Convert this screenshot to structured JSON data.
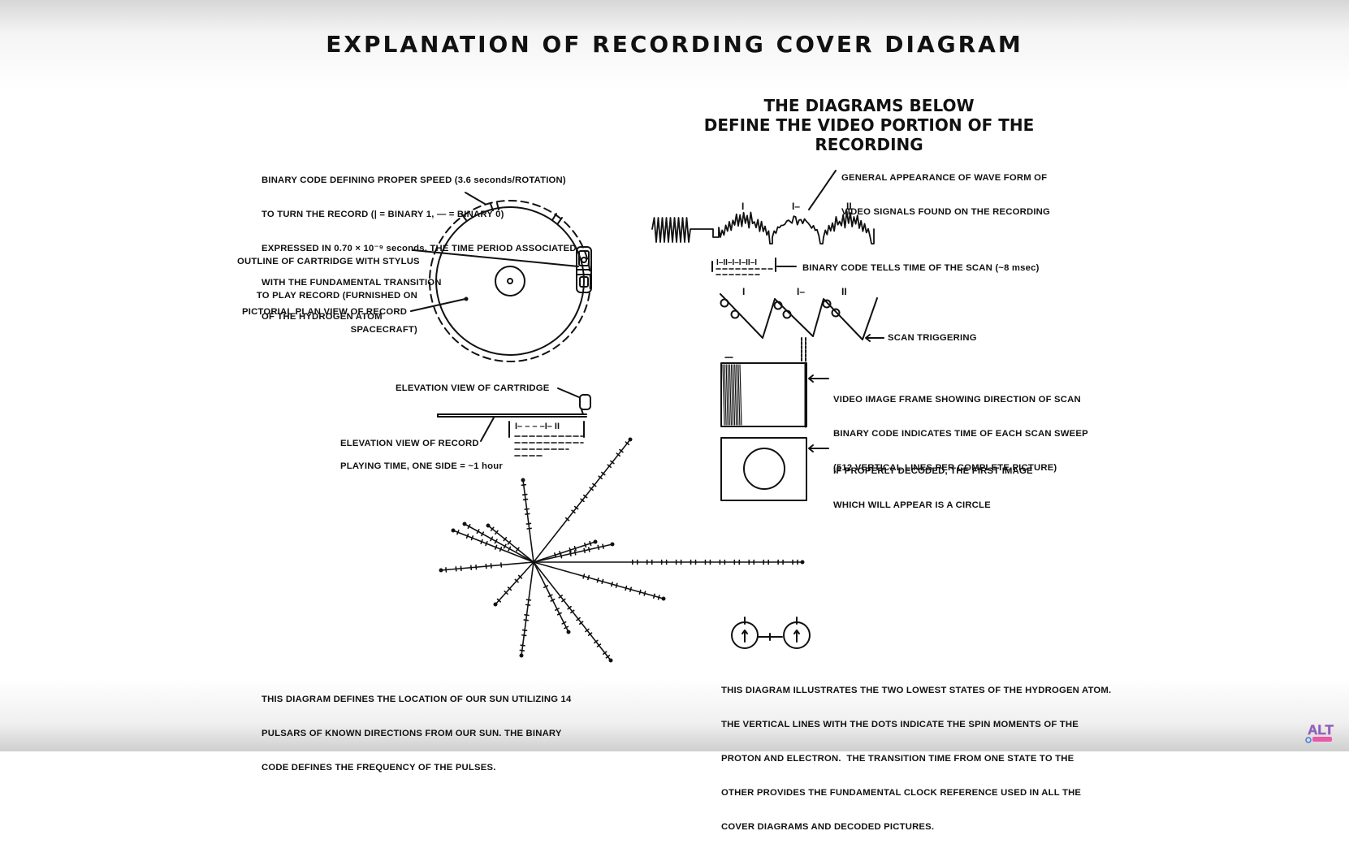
{
  "title": "EXPLANATION OF RECORDING COVER DIAGRAM",
  "subtitle": [
    "THE DIAGRAMS BELOW",
    "DEFINE THE VIDEO PORTION OF THE RECORDING"
  ],
  "left_labels": {
    "binary_code": [
      "BINARY CODE DEFINING PROPER SPEED (3.6 seconds/ROTATION)",
      "TO TURN THE RECORD (| = BINARY 1, — = BINARY 0)",
      "EXPRESSED IN 0.70 × 10⁻⁹ seconds, THE TIME PERIOD ASSOCIATED",
      "WITH THE FUNDAMENTAL TRANSITION",
      "OF THE HYDROGEN ATOM"
    ],
    "cartridge_outline": [
      "OUTLINE OF CARTRIDGE WITH STYLUS",
      "TO PLAY RECORD (FURNISHED ON",
      "SPACECRAFT)"
    ],
    "plan_view": "PICTORIAL PLAN VIEW OF RECORD",
    "elevation_cartridge": "ELEVATION VIEW OF CARTRIDGE",
    "elevation_record": "ELEVATION VIEW OF RECORD",
    "playing_time": "PLAYING TIME, ONE SIDE = ~1 hour",
    "pulsar_caption": [
      "THIS DIAGRAM DEFINES THE LOCATION OF OUR SUN UTILIZING 14",
      "PULSARS OF KNOWN DIRECTIONS FROM OUR SUN. THE BINARY",
      "CODE DEFINES THE FREQUENCY OF THE PULSES."
    ]
  },
  "right_labels": {
    "waveform": [
      "GENERAL APPEARANCE OF WAVE FORM OF",
      "VIDEO SIGNALS FOUND ON THE RECORDING"
    ],
    "binary_time": "BINARY CODE TELLS TIME OF THE SCAN (~8 msec)",
    "scan_trigger": "SCAN TRIGGERING",
    "video_frame": [
      "VIDEO IMAGE FRAME SHOWING DIRECTION OF SCAN",
      "BINARY CODE INDICATES TIME OF EACH SCAN SWEEP",
      "(512 VERTICAL LINES PER COMPLETE PICTURE)"
    ],
    "first_image": [
      "IF PROPERLY DECODED, THE FIRST IMAGE",
      "WHICH WILL APPEAR IS A CIRCLE"
    ],
    "hydrogen_caption": [
      "THIS DIAGRAM ILLUSTRATES THE TWO LOWEST STATES OF THE HYDROGEN ATOM.",
      "THE VERTICAL LINES WITH THE DOTS INDICATE THE SPIN MOMENTS OF THE",
      "PROTON AND ELECTRON.  THE TRANSITION TIME FROM ONE STATE TO THE",
      "OTHER PROVIDES THE FUNDAMENTAL CLOCK REFERENCE USED IN ALL THE",
      "COVER DIAGRAMS AND DECODED PICTURES."
    ]
  },
  "waveform_marks": [
    "I",
    "I–",
    "II"
  ],
  "trigger_marks": [
    "I",
    "I–",
    "II"
  ],
  "waveform_binary": "I–II–I–I–II–I",
  "elevation_binary": "I– – – –I– II",
  "logo_text": "ALT",
  "colors": {
    "ink": "#111111",
    "background": "#ffffff",
    "logo_blue": "#3d7bd8",
    "logo_pink": "#e85aa8"
  }
}
